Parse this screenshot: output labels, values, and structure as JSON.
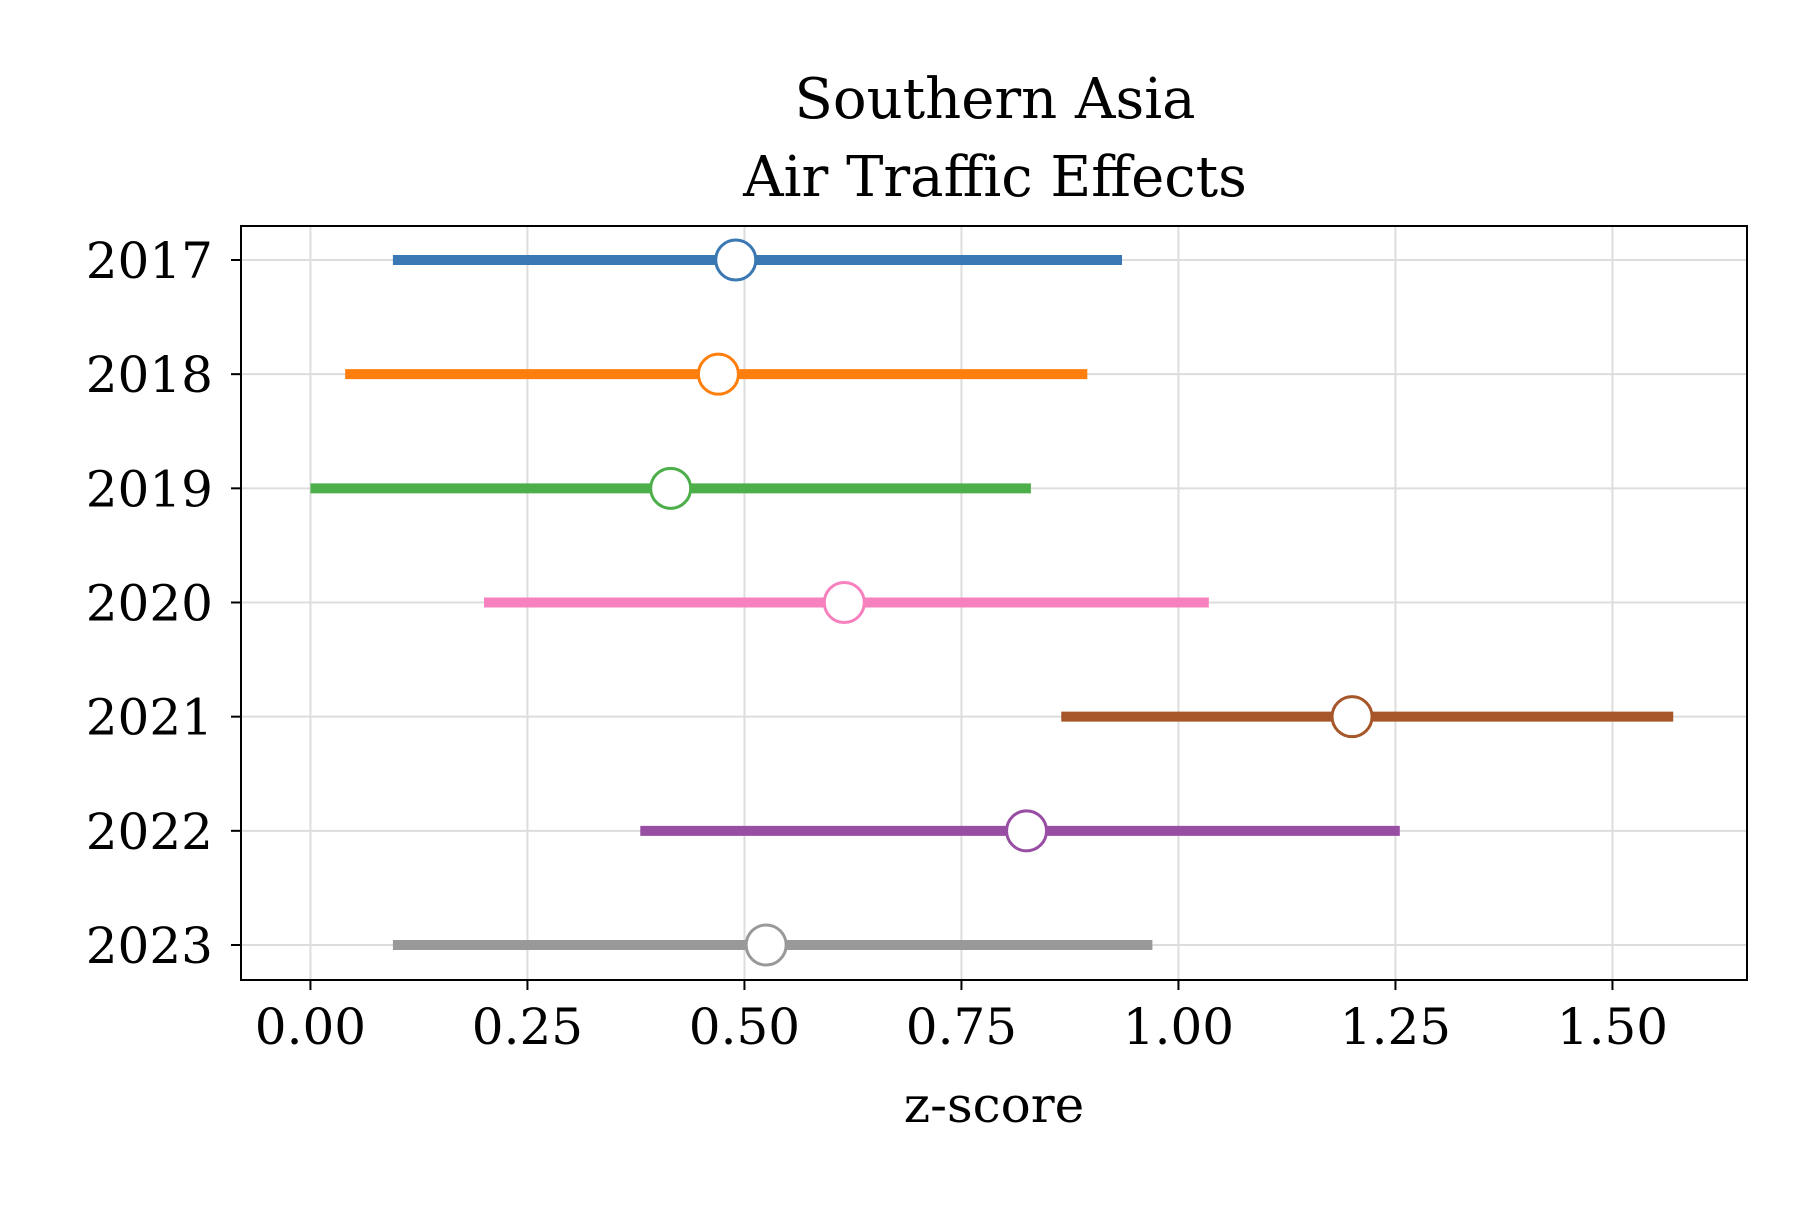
{
  "chart_data": {
    "type": "forest",
    "title": [
      "Southern Asia",
      "Air Traffic Effects"
    ],
    "xlabel": "z-score",
    "ylabel": "",
    "xlim": [
      -0.08,
      1.655
    ],
    "xticks": [
      0.0,
      0.25,
      0.5,
      0.75,
      1.0,
      1.25,
      1.5
    ],
    "xtick_labels": [
      "0.00",
      "0.25",
      "0.50",
      "0.75",
      "1.00",
      "1.25",
      "1.50"
    ],
    "grid": true,
    "categories": [
      "2017",
      "2018",
      "2019",
      "2020",
      "2021",
      "2022",
      "2023"
    ],
    "series": [
      {
        "label": "2017",
        "estimate": 0.49,
        "low": 0.095,
        "high": 0.935,
        "color": "#3a78b4"
      },
      {
        "label": "2018",
        "estimate": 0.47,
        "low": 0.04,
        "high": 0.895,
        "color": "#ff7f0e"
      },
      {
        "label": "2019",
        "estimate": 0.415,
        "low": 0.0,
        "high": 0.83,
        "color": "#4daf4a"
      },
      {
        "label": "2020",
        "estimate": 0.615,
        "low": 0.2,
        "high": 1.035,
        "color": "#f781bf"
      },
      {
        "label": "2021",
        "estimate": 1.2,
        "low": 0.865,
        "high": 1.57,
        "color": "#a65628"
      },
      {
        "label": "2022",
        "estimate": 0.825,
        "low": 0.38,
        "high": 1.255,
        "color": "#984ea3"
      },
      {
        "label": "2023",
        "estimate": 0.525,
        "low": 0.095,
        "high": 0.97,
        "color": "#999999"
      }
    ]
  }
}
